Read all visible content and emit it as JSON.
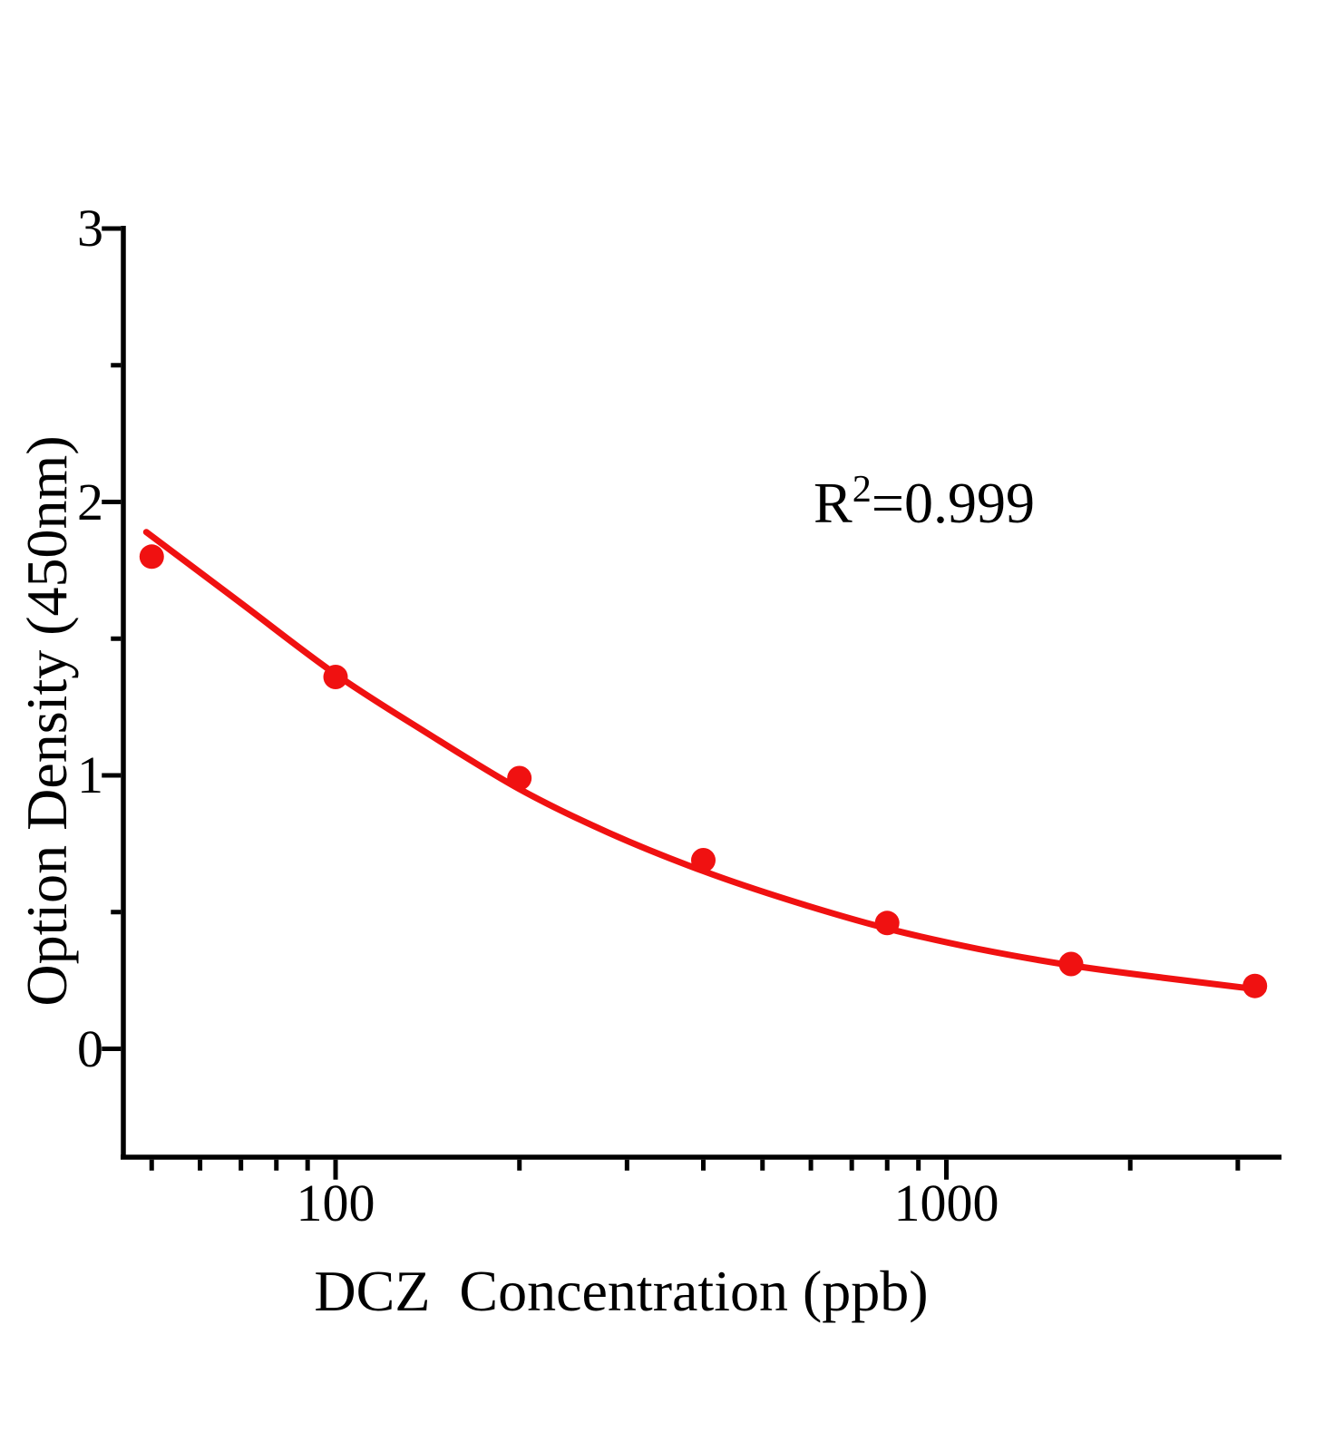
{
  "chart_data": {
    "type": "scatter",
    "title": "",
    "xlabel": "DCZ  Concentration (ppb)",
    "ylabel": "Option Density (450nm)",
    "annotation": {
      "base": "R",
      "sup": "2",
      "rest": "=0.999"
    },
    "x_axis": {
      "scale": "log",
      "range": [
        44,
        3530
      ],
      "major_ticks": [
        {
          "value": 100,
          "label": "100"
        },
        {
          "value": 1000,
          "label": "1000"
        }
      ],
      "minor_ticks": [
        50,
        60,
        70,
        80,
        90,
        200,
        300,
        400,
        500,
        600,
        700,
        800,
        900,
        2000,
        3000
      ]
    },
    "y_axis": {
      "scale": "linear",
      "range": [
        -0.4,
        3
      ],
      "major_ticks": [
        {
          "value": 0,
          "label": "0"
        },
        {
          "value": 1,
          "label": "1"
        },
        {
          "value": 2,
          "label": "2"
        },
        {
          "value": 3,
          "label": "3"
        }
      ],
      "minor_ticks": [
        0.5,
        1.5,
        2.5
      ]
    },
    "series": [
      {
        "name": "standard-points",
        "type": "scatter",
        "color": "#f01111",
        "points": [
          [
            50,
            1.8
          ],
          [
            100,
            1.36
          ],
          [
            200,
            0.99
          ],
          [
            400,
            0.69
          ],
          [
            800,
            0.46
          ],
          [
            1600,
            0.31
          ],
          [
            3200,
            0.23
          ]
        ]
      },
      {
        "name": "fit-curve",
        "type": "line",
        "color": "#f01111",
        "points": [
          [
            49,
            1.89
          ],
          [
            70,
            1.63
          ],
          [
            100,
            1.37
          ],
          [
            140,
            1.16
          ],
          [
            200,
            0.95
          ],
          [
            280,
            0.79
          ],
          [
            400,
            0.65
          ],
          [
            560,
            0.54
          ],
          [
            800,
            0.44
          ],
          [
            1130,
            0.365
          ],
          [
            1600,
            0.305
          ],
          [
            2260,
            0.26
          ],
          [
            3300,
            0.215
          ]
        ]
      }
    ],
    "legend": null,
    "grid": false,
    "colors": {
      "points": "#f01111",
      "curve": "#f01111",
      "axis": "#000000",
      "background": "#ffffff"
    }
  }
}
